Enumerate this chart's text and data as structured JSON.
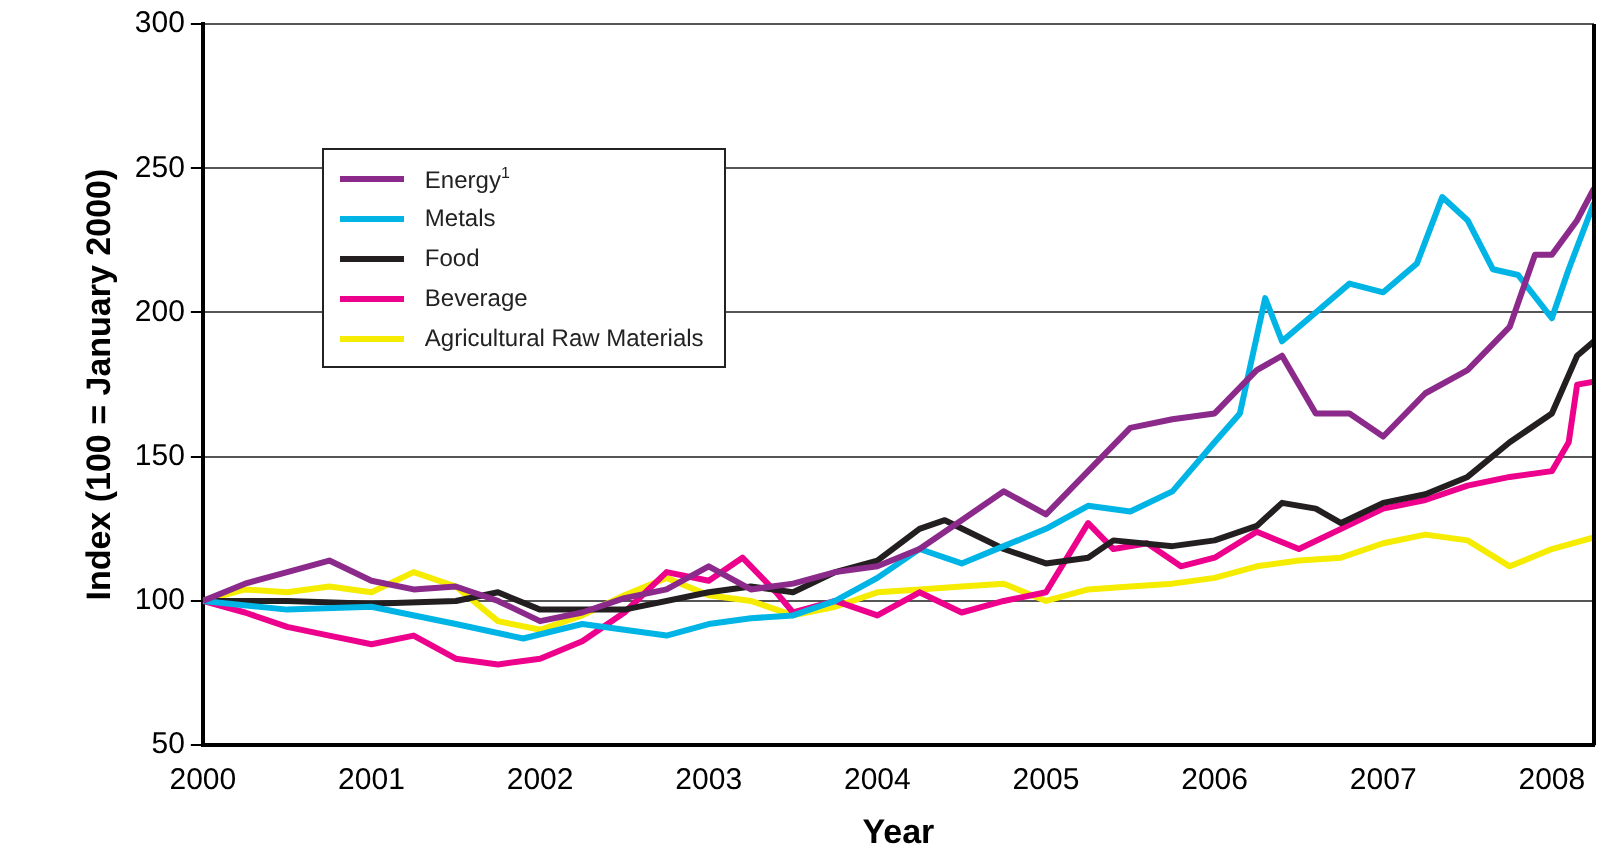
{
  "chart_data": {
    "type": "line",
    "xlabel": "Year",
    "ylabel": "Index (100 = January 2000)",
    "xlim": [
      2000,
      2008.25
    ],
    "xticks": [
      2000,
      2001,
      2002,
      2003,
      2004,
      2005,
      2006,
      2007,
      2008
    ],
    "ylim": [
      50,
      300
    ],
    "yticks": [
      50,
      100,
      150,
      200,
      250,
      300
    ],
    "grid": "y",
    "legend": "top left",
    "marker": "none",
    "line_style": "solid",
    "series": [
      {
        "name": "Energy$^{1}$",
        "color": "#8b2a8b",
        "x": [
          2000,
          2000.25,
          2000.5,
          2000.75,
          2001,
          2001.25,
          2001.5,
          2001.75,
          2002,
          2002.25,
          2002.5,
          2002.75,
          2003,
          2003.25,
          2003.5,
          2003.75,
          2004,
          2004.25,
          2004.5,
          2004.75,
          2005,
          2005.25,
          2005.5,
          2005.75,
          2006,
          2006.25,
          2006.4,
          2006.6,
          2006.8,
          2007,
          2007.25,
          2007.5,
          2007.75,
          2007.9,
          2008,
          2008.15,
          2008.25
        ],
        "values": [
          100,
          106,
          110,
          114,
          107,
          104,
          105,
          100,
          93,
          96,
          101,
          104,
          112,
          104,
          106,
          110,
          112,
          118,
          128,
          138,
          130,
          145,
          160,
          163,
          165,
          180,
          185,
          165,
          165,
          157,
          172,
          180,
          195,
          220,
          220,
          232,
          243
        ]
      },
      {
        "name": "Metals",
        "color": "#00b5e5",
        "x": [
          2000,
          2000.5,
          2001,
          2001.5,
          2001.9,
          2002.25,
          2002.5,
          2002.75,
          2003,
          2003.25,
          2003.5,
          2003.75,
          2004,
          2004.25,
          2004.5,
          2004.75,
          2005,
          2005.25,
          2005.5,
          2005.75,
          2006,
          2006.15,
          2006.3,
          2006.4,
          2006.6,
          2006.8,
          2007,
          2007.2,
          2007.35,
          2007.5,
          2007.65,
          2007.8,
          2008,
          2008.1,
          2008.25
        ],
        "values": [
          100,
          97,
          98,
          92,
          87,
          92,
          90,
          88,
          92,
          94,
          95,
          100,
          108,
          118,
          113,
          119,
          125,
          133,
          131,
          138,
          155,
          165,
          205,
          190,
          200,
          210,
          207,
          217,
          240,
          232,
          215,
          213,
          198,
          215,
          238
        ]
      },
      {
        "name": "Food",
        "color": "#231f20",
        "x": [
          2000,
          2000.5,
          2001,
          2001.5,
          2001.75,
          2002,
          2002.5,
          2003,
          2003.25,
          2003.5,
          2003.75,
          2004,
          2004.25,
          2004.4,
          2004.75,
          2005,
          2005.25,
          2005.4,
          2005.75,
          2006,
          2006.25,
          2006.4,
          2006.6,
          2006.75,
          2007,
          2007.25,
          2007.5,
          2007.75,
          2008,
          2008.15,
          2008.25
        ],
        "values": [
          100,
          100,
          99,
          100,
          103,
          97,
          97,
          103,
          105,
          103,
          110,
          114,
          125,
          128,
          118,
          113,
          115,
          121,
          119,
          121,
          126,
          134,
          132,
          127,
          134,
          137,
          143,
          155,
          165,
          185,
          190
        ]
      },
      {
        "name": "Beverage",
        "color": "#ec008c",
        "x": [
          2000,
          2000.25,
          2000.5,
          2000.75,
          2001,
          2001.25,
          2001.5,
          2001.75,
          2002,
          2002.25,
          2002.5,
          2002.75,
          2003,
          2003.2,
          2003.4,
          2003.5,
          2003.75,
          2004,
          2004.25,
          2004.5,
          2004.75,
          2005,
          2005.25,
          2005.4,
          2005.6,
          2005.8,
          2006,
          2006.25,
          2006.5,
          2006.75,
          2007,
          2007.25,
          2007.5,
          2007.75,
          2008,
          2008.1,
          2008.15,
          2008.25
        ],
        "values": [
          100,
          96,
          91,
          88,
          85,
          88,
          80,
          78,
          80,
          86,
          96,
          110,
          107,
          115,
          103,
          96,
          100,
          95,
          103,
          96,
          100,
          103,
          127,
          118,
          120,
          112,
          115,
          124,
          118,
          125,
          132,
          135,
          140,
          143,
          145,
          155,
          175,
          176
        ]
      },
      {
        "name": "Agricultural Raw Materials",
        "color": "#f5ec00",
        "x": [
          2000,
          2000.25,
          2000.5,
          2000.75,
          2001,
          2001.25,
          2001.5,
          2001.75,
          2002,
          2002.25,
          2002.5,
          2002.75,
          2003,
          2003.25,
          2003.5,
          2003.75,
          2004,
          2004.25,
          2004.5,
          2004.75,
          2005,
          2005.25,
          2005.5,
          2005.75,
          2006,
          2006.25,
          2006.5,
          2006.75,
          2007,
          2007.25,
          2007.5,
          2007.75,
          2008,
          2008.25
        ],
        "values": [
          100,
          104,
          103,
          105,
          103,
          110,
          105,
          93,
          90,
          95,
          102,
          108,
          102,
          100,
          95,
          98,
          103,
          104,
          105,
          106,
          100,
          104,
          105,
          106,
          108,
          112,
          114,
          115,
          120,
          123,
          121,
          112,
          118,
          122
        ]
      }
    ]
  }
}
